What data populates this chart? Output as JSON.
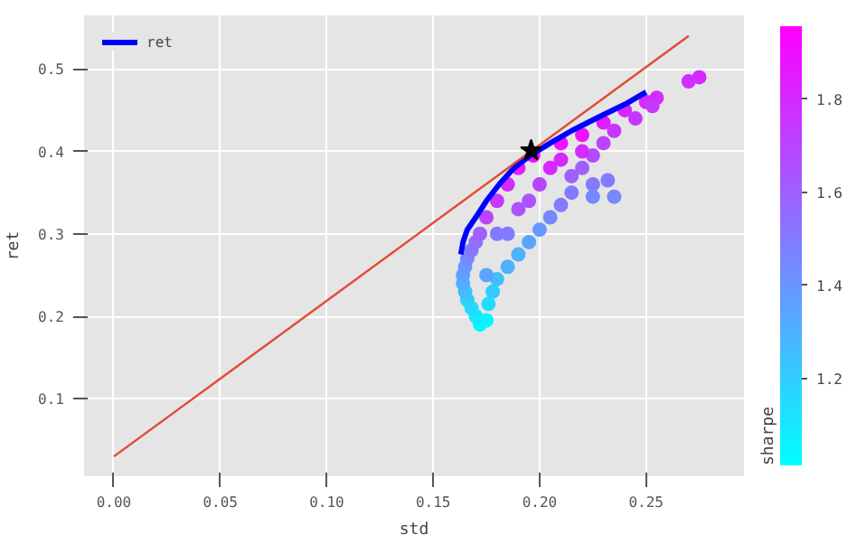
{
  "chart_data": {
    "type": "scatter",
    "xlabel": "std",
    "ylabel": "ret",
    "clabel": "sharpe",
    "xlim": [
      -0.014,
      0.296
    ],
    "ylim": [
      0.006,
      0.565
    ],
    "clim": [
      1.013,
      1.957
    ],
    "xticks": [
      {
        "value": 0,
        "label": "0.00"
      },
      {
        "value": 0.05,
        "label": "0.05"
      },
      {
        "value": 0.1,
        "label": "0.10"
      },
      {
        "value": 0.15,
        "label": "0.15"
      },
      {
        "value": 0.2,
        "label": "0.20"
      },
      {
        "value": 0.25,
        "label": "0.25"
      }
    ],
    "yticks": [
      0.1,
      0.2,
      0.3,
      0.4,
      0.5
    ],
    "cticks": [
      1.2,
      1.4,
      1.6,
      1.8
    ],
    "grid": true,
    "legend": "top left",
    "series": [
      {
        "type": "scatter",
        "marker": "circle",
        "colors": [
          "#09f5ff",
          "#09f5ff",
          "#17e7ff",
          "#25d9ff",
          "#32ccff",
          "#40beff",
          "#4db1ff",
          "#5ba3ff",
          "#6896ff",
          "#7688ff",
          "#837bff",
          "#916dff",
          "#9e60ff",
          "#b945ff",
          "#c737ff",
          "#d42aff",
          "#e21cff",
          "#ef0fff",
          "#ef0fff",
          "#ea14ff",
          "#e21cff",
          "#d925ff",
          "#d42aff",
          "#cf2fff",
          "#c737ff",
          "#c737ff",
          "#c737ff",
          "#b945ff",
          "#b44aff",
          "#9e60ff",
          "#9e60ff",
          "#837bff",
          "#837bff",
          "#7688ff",
          "#7688ff",
          "#837bff",
          "#837bff",
          "#7688ff",
          "#6896ff",
          "#5ba3ff",
          "#4db1ff",
          "#4db1ff",
          "#40beff",
          "#32ccff",
          "#25d9ff",
          "#837bff",
          "#ac52ff",
          "#b945ff",
          "#837bff",
          "#d42aff",
          "#d42aff",
          "#cf2fff",
          "#5ba3ff",
          "#ac52ff",
          "#d42aff",
          "#d42aff"
        ],
        "x": [
          0.172,
          0.175,
          0.17,
          0.168,
          0.166,
          0.165,
          0.164,
          0.164,
          0.165,
          0.166,
          0.168,
          0.17,
          0.172,
          0.175,
          0.18,
          0.185,
          0.19,
          0.197,
          0.21,
          0.22,
          0.23,
          0.24,
          0.25,
          0.255,
          0.253,
          0.245,
          0.235,
          0.23,
          0.225,
          0.22,
          0.215,
          0.225,
          0.232,
          0.235,
          0.225,
          0.215,
          0.21,
          0.205,
          0.2,
          0.195,
          0.19,
          0.185,
          0.18,
          0.178,
          0.176,
          0.18,
          0.19,
          0.2,
          0.185,
          0.205,
          0.275,
          0.27,
          0.175,
          0.195,
          0.21,
          0.22
        ],
        "values": [
          0.19,
          0.195,
          0.2,
          0.21,
          0.22,
          0.23,
          0.24,
          0.25,
          0.26,
          0.27,
          0.28,
          0.29,
          0.3,
          0.32,
          0.34,
          0.36,
          0.38,
          0.395,
          0.41,
          0.42,
          0.435,
          0.45,
          0.46,
          0.465,
          0.455,
          0.44,
          0.425,
          0.41,
          0.395,
          0.38,
          0.37,
          0.36,
          0.365,
          0.345,
          0.345,
          0.35,
          0.335,
          0.32,
          0.305,
          0.29,
          0.275,
          0.26,
          0.245,
          0.23,
          0.215,
          0.3,
          0.33,
          0.36,
          0.3,
          0.38,
          0.49,
          0.485,
          0.25,
          0.34,
          0.39,
          0.4
        ],
        "cvalues": [
          1.05,
          1.05,
          1.1,
          1.15,
          1.2,
          1.25,
          1.3,
          1.35,
          1.4,
          1.45,
          1.5,
          1.55,
          1.6,
          1.7,
          1.75,
          1.8,
          1.85,
          1.9,
          1.9,
          1.88,
          1.85,
          1.82,
          1.8,
          1.78,
          1.75,
          1.75,
          1.75,
          1.7,
          1.68,
          1.6,
          1.6,
          1.5,
          1.5,
          1.45,
          1.45,
          1.5,
          1.5,
          1.45,
          1.4,
          1.35,
          1.3,
          1.3,
          1.25,
          1.2,
          1.15,
          1.5,
          1.65,
          1.7,
          1.5,
          1.8,
          1.8,
          1.78,
          1.35,
          1.65,
          1.8,
          1.8
        ]
      },
      {
        "type": "line",
        "name": "ret",
        "color": "#0000ff",
        "marker": "none",
        "x": [
          0.163,
          0.164,
          0.166,
          0.17,
          0.175,
          0.181,
          0.188,
          0.1955,
          0.205,
          0.215,
          0.228,
          0.24,
          0.25
        ],
        "values": [
          0.275,
          0.29,
          0.305,
          0.32,
          0.34,
          0.36,
          0.38,
          0.395,
          0.41,
          0.425,
          0.442,
          0.457,
          0.472
        ]
      },
      {
        "type": "line",
        "color": "#e24a33",
        "marker": "none",
        "x": [
          0.0,
          0.27
        ],
        "values": [
          0.03,
          0.54
        ]
      },
      {
        "type": "scatter",
        "color": "#000000",
        "marker": "star",
        "x": [
          0.196
        ],
        "values": [
          0.401
        ]
      }
    ]
  }
}
